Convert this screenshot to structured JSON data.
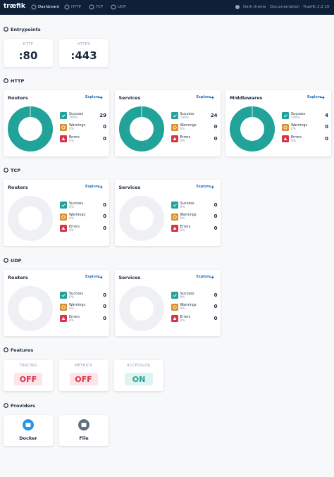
{
  "nav": {
    "logo": "træfik",
    "tabs": [
      "Dashboard",
      "HTTP",
      "TCP",
      "UDP"
    ],
    "dark_theme": "Dark theme",
    "documentation": "Documentation",
    "version": "Traefik 2.2.10"
  },
  "entrypoints": {
    "title": "Entrypoints",
    "items": [
      {
        "name": "HTTP",
        "address": ":80"
      },
      {
        "name": "HTTPS",
        "address": ":443"
      }
    ]
  },
  "protocols": [
    {
      "title": "HTTP",
      "cards": [
        {
          "title": "Routers",
          "link": "Explore",
          "stats": [
            {
              "label": "Success",
              "percent": "100%",
              "count": 29
            },
            {
              "label": "Warnings",
              "percent": "0%",
              "count": 0
            },
            {
              "label": "Errors",
              "percent": "0%",
              "count": 0
            }
          ]
        },
        {
          "title": "Services",
          "link": "Explore",
          "stats": [
            {
              "label": "Success",
              "percent": "100%",
              "count": 24
            },
            {
              "label": "Warnings",
              "percent": "0%",
              "count": 0
            },
            {
              "label": "Errors",
              "percent": "0%",
              "count": 0
            }
          ]
        },
        {
          "title": "Middlewares",
          "link": "Explore",
          "stats": [
            {
              "label": "Success",
              "percent": "100%",
              "count": 4
            },
            {
              "label": "Warnings",
              "percent": "0%",
              "count": 0
            },
            {
              "label": "Errors",
              "percent": "0%",
              "count": 0
            }
          ]
        }
      ]
    },
    {
      "title": "TCP",
      "cards": [
        {
          "title": "Routers",
          "link": "Explore",
          "stats": [
            {
              "label": "Success",
              "percent": "0%",
              "count": 0
            },
            {
              "label": "Warnings",
              "percent": "0%",
              "count": 0
            },
            {
              "label": "Errors",
              "percent": "0%",
              "count": 0
            }
          ]
        },
        {
          "title": "Services",
          "link": "Explore",
          "stats": [
            {
              "label": "Success",
              "percent": "0%",
              "count": 0
            },
            {
              "label": "Warnings",
              "percent": "0%",
              "count": 0
            },
            {
              "label": "Errors",
              "percent": "0%",
              "count": 0
            }
          ]
        }
      ]
    },
    {
      "title": "UDP",
      "cards": [
        {
          "title": "Routers",
          "link": "Explore",
          "stats": [
            {
              "label": "Success",
              "percent": "0%",
              "count": 0
            },
            {
              "label": "Warnings",
              "percent": "0%",
              "count": 0
            },
            {
              "label": "Errors",
              "percent": "0%",
              "count": 0
            }
          ]
        },
        {
          "title": "Services",
          "link": "Explore",
          "stats": [
            {
              "label": "Success",
              "percent": "0%",
              "count": 0
            },
            {
              "label": "Warnings",
              "percent": "0%",
              "count": 0
            },
            {
              "label": "Errors",
              "percent": "0%",
              "count": 0
            }
          ]
        }
      ]
    }
  ],
  "features": {
    "title": "Features",
    "items": [
      {
        "name": "TRACING",
        "state": "OFF"
      },
      {
        "name": "METRICS",
        "state": "OFF"
      },
      {
        "name": "ACCESSLOG",
        "state": "ON"
      }
    ]
  },
  "providers": {
    "title": "Providers",
    "items": [
      "Docker",
      "File"
    ]
  }
}
